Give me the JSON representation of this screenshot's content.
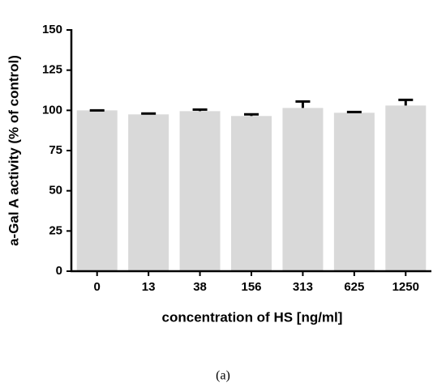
{
  "chart_data": {
    "type": "bar",
    "y_label": "a-Gal A activity (% of control)",
    "x_label": "concentration of HS [ng/ml]",
    "caption": "(a)",
    "categories": [
      "0",
      "13",
      "38",
      "156",
      "313",
      "625",
      "1250"
    ],
    "values": [
      100,
      97.5,
      99.5,
      96.5,
      101.5,
      98.5,
      103
    ],
    "errors": [
      0,
      0.5,
      1,
      1,
      4,
      0.5,
      3.5
    ],
    "color": "#d9d9d9",
    "error_color": "#000000",
    "ylim": [
      0,
      150
    ],
    "yticks": [
      0,
      25,
      50,
      75,
      100,
      125,
      150
    ],
    "grid": false
  }
}
